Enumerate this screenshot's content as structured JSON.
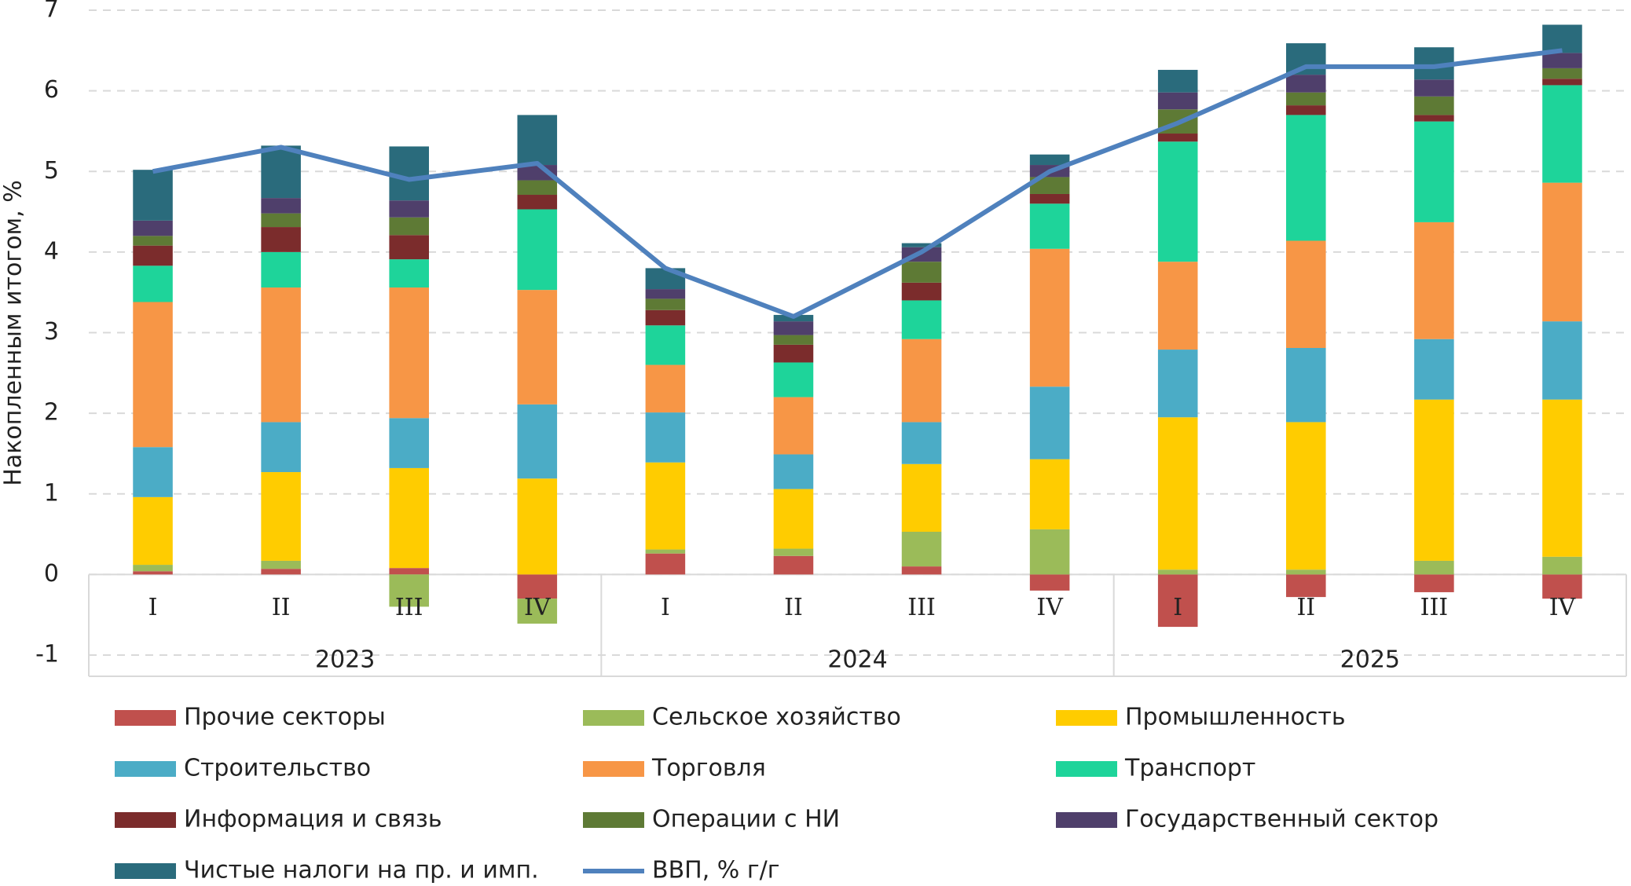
{
  "chart_data": {
    "type": "bar",
    "stacked": true,
    "y_label": "Накопленным итогом, %",
    "categories": [
      "I",
      "II",
      "III",
      "IV",
      "I",
      "II",
      "III",
      "IV",
      "I",
      "II",
      "III",
      "IV"
    ],
    "groups": [
      "2023",
      "2024",
      "2025"
    ],
    "ylim": [
      -1,
      7
    ],
    "yticks": [
      -1,
      0,
      1,
      2,
      3,
      4,
      5,
      6,
      7
    ],
    "grid": true,
    "series": [
      {
        "name": "Прочие секторы",
        "color": "#c0504d",
        "values": [
          0.04,
          0.07,
          0.08,
          -0.3,
          0.26,
          0.23,
          0.1,
          -0.2,
          -0.65,
          -0.28,
          -0.22,
          -0.3
        ]
      },
      {
        "name": "Сельское хозяйство",
        "color": "#9bbb59",
        "values": [
          0.08,
          0.1,
          -0.4,
          -0.31,
          0.05,
          0.09,
          0.43,
          0.56,
          0.06,
          0.06,
          0.17,
          0.22
        ]
      },
      {
        "name": "Промышленность",
        "color": "#ffcc00",
        "values": [
          0.84,
          1.1,
          1.24,
          1.19,
          1.08,
          0.74,
          0.84,
          0.87,
          1.89,
          1.83,
          2.0,
          1.95
        ]
      },
      {
        "name": "Строительство",
        "color": "#4bacc6",
        "values": [
          0.62,
          0.62,
          0.62,
          0.92,
          0.62,
          0.43,
          0.52,
          0.9,
          0.84,
          0.92,
          0.75,
          0.97
        ]
      },
      {
        "name": "Торговля",
        "color": "#f79646",
        "values": [
          1.8,
          1.67,
          1.62,
          1.42,
          0.59,
          0.71,
          1.03,
          1.71,
          1.09,
          1.33,
          1.45,
          1.72
        ]
      },
      {
        "name": "Транспорт",
        "color": "#1ed49a",
        "values": [
          0.45,
          0.44,
          0.35,
          1.0,
          0.49,
          0.43,
          0.48,
          0.56,
          1.49,
          1.56,
          1.25,
          1.21
        ]
      },
      {
        "name": "Информация и связь",
        "color": "#7b2c2c",
        "values": [
          0.25,
          0.31,
          0.3,
          0.18,
          0.19,
          0.22,
          0.22,
          0.12,
          0.1,
          0.12,
          0.08,
          0.08
        ]
      },
      {
        "name": "Операции с НИ",
        "color": "#5e7a35",
        "values": [
          0.12,
          0.17,
          0.22,
          0.18,
          0.14,
          0.12,
          0.26,
          0.21,
          0.3,
          0.16,
          0.23,
          0.13
        ]
      },
      {
        "name": "Государственный сектор",
        "color": "#4f3f6b",
        "values": [
          0.19,
          0.19,
          0.21,
          0.19,
          0.12,
          0.17,
          0.18,
          0.15,
          0.21,
          0.22,
          0.21,
          0.19
        ]
      },
      {
        "name": "Чистые налоги на пр. и имп.",
        "color": "#2a6b7c",
        "values": [
          0.63,
          0.65,
          0.67,
          0.62,
          0.26,
          0.08,
          0.05,
          0.13,
          0.28,
          0.39,
          0.4,
          0.35
        ]
      },
      {
        "name": "ВВП, % г/г",
        "color": "#4f81bd",
        "type": "line",
        "values": [
          5.0,
          5.3,
          4.9,
          5.1,
          3.8,
          3.2,
          4.0,
          5.0,
          5.6,
          6.3,
          6.3,
          6.5
        ]
      }
    ]
  }
}
